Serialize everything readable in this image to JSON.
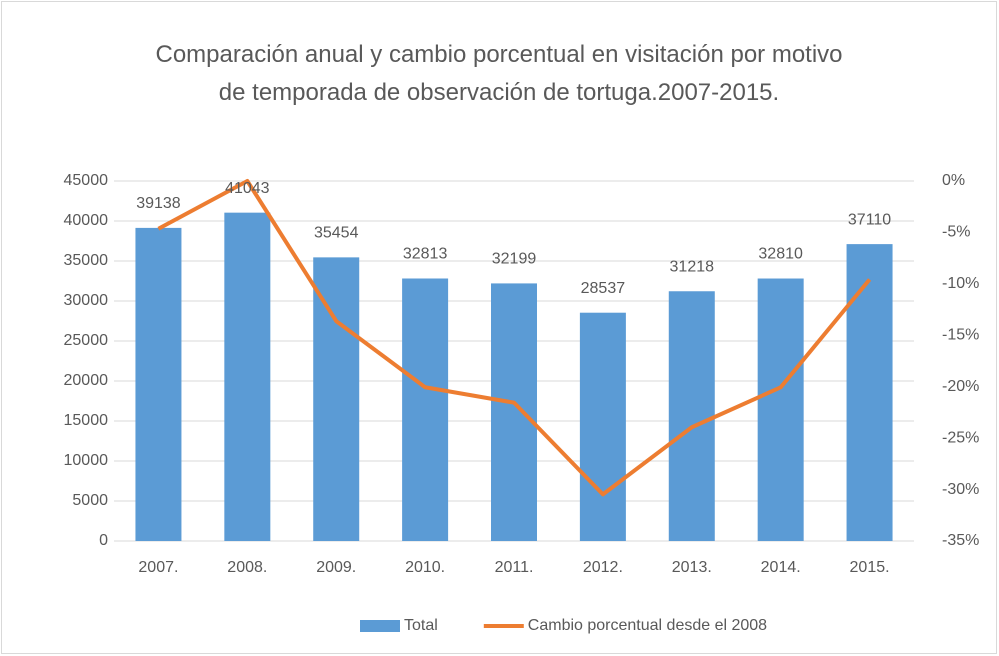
{
  "chart_data": {
    "type": "combo",
    "title": "Comparación anual y cambio porcentual en visitación por motivo de temporada de observación de tortuga.2007-2015.",
    "categories": [
      "2007.",
      "2008.",
      "2009.",
      "2010.",
      "2011.",
      "2012.",
      "2013.",
      "2014.",
      "2015."
    ],
    "series": [
      {
        "name": "Total",
        "type": "bar",
        "color": "#5b9bd5",
        "values": [
          39138,
          41043,
          35454,
          32813,
          32199,
          28537,
          31218,
          32810,
          37110
        ]
      },
      {
        "name": "Cambio porcentual desde el 2008",
        "type": "line",
        "axis": "y2",
        "color": "#ed7d31",
        "values": [
          -4.64,
          0,
          -13.62,
          -20.05,
          -21.55,
          -30.47,
          -23.94,
          -20.06,
          -9.58
        ]
      }
    ],
    "ylim": [
      0,
      45000
    ],
    "yticks": [
      0,
      5000,
      10000,
      15000,
      20000,
      25000,
      30000,
      35000,
      40000,
      45000
    ],
    "y2lim": [
      -35,
      0
    ],
    "y2ticks": [
      {
        "value": 0,
        "label": "0%"
      },
      {
        "value": -5,
        "label": "-5%"
      },
      {
        "value": -10,
        "label": "-10%"
      },
      {
        "value": -15,
        "label": "-15%"
      },
      {
        "value": -20,
        "label": "-20%"
      },
      {
        "value": -25,
        "label": "-25%"
      },
      {
        "value": -30,
        "label": "-30%"
      },
      {
        "value": -35,
        "label": "-35%"
      }
    ],
    "grid": true,
    "legend": "bottom"
  }
}
